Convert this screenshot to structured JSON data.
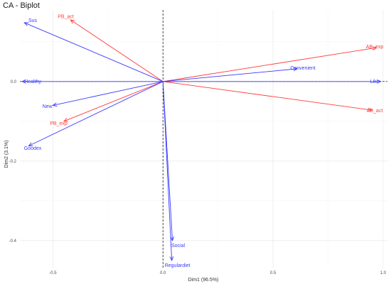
{
  "chart_data": {
    "type": "biplot",
    "title": "CA - Biplot",
    "xlabel": "Dim1 (96.5%)",
    "ylabel": "Dim2 (3.1%)",
    "xlim": [
      -0.65,
      1.02
    ],
    "ylim": [
      -0.47,
      0.18
    ],
    "xticks": [
      -0.5,
      0.0,
      0.5,
      1.0
    ],
    "yticks": [
      0.0,
      -0.2,
      -0.4
    ],
    "xtick_labels": [
      "-0.5",
      "0.0",
      "0.5",
      "1.0"
    ],
    "ytick_labels": [
      "0.0",
      "-0.2",
      "-0.4"
    ],
    "grid": true,
    "reference_lines": {
      "x": 0,
      "y": 0,
      "style": "dashed"
    },
    "series": [
      {
        "color": "#ff3b3b",
        "arrows": [
          {
            "label": "PB_act",
            "x": -0.42,
            "y": 0.155
          },
          {
            "label": "AB_exp",
            "x": 0.97,
            "y": 0.085
          },
          {
            "label": "AB_act",
            "x": 0.95,
            "y": -0.072
          },
          {
            "label": "PB_exp",
            "x": -0.45,
            "y": -0.1
          }
        ]
      },
      {
        "color": "#3a3aff",
        "arrows": [
          {
            "label": "Sus",
            "x": -0.63,
            "y": 0.148
          },
          {
            "label": "Healthy",
            "x": -0.64,
            "y": 0.0
          },
          {
            "label": "Convenient",
            "x": 0.61,
            "y": 0.032
          },
          {
            "label": "Like",
            "x": 0.99,
            "y": 0.0
          },
          {
            "label": "New",
            "x": -0.5,
            "y": -0.06
          },
          {
            "label": "Goodex",
            "x": -0.61,
            "y": -0.162
          },
          {
            "label": "Social",
            "x": 0.043,
            "y": -0.4
          },
          {
            "label": "Regulardiet",
            "x": 0.04,
            "y": -0.45
          }
        ]
      }
    ]
  }
}
